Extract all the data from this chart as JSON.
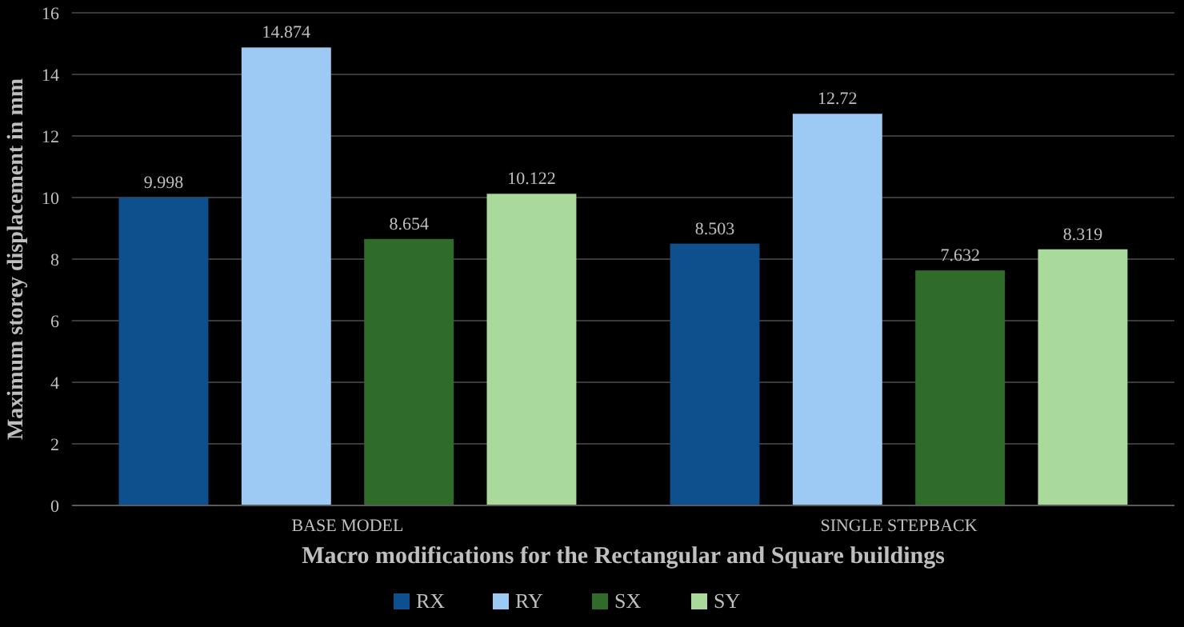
{
  "chart_data": {
    "type": "bar",
    "xlabel": "Macro modifications for the Rectangular and Square buildings",
    "ylabel": "Maximum storey displacement in mm",
    "categories": [
      "BASE MODEL",
      "SINGLE STEPBACK"
    ],
    "series": [
      {
        "name": "RX",
        "color": "#0e4f8e",
        "values": [
          9.998,
          8.503
        ]
      },
      {
        "name": "RY",
        "color": "#9dcaf4",
        "values": [
          14.874,
          12.72
        ]
      },
      {
        "name": "SX",
        "color": "#2f6b29",
        "values": [
          8.654,
          7.632
        ]
      },
      {
        "name": "SY",
        "color": "#a9d99b",
        "values": [
          10.122,
          8.319
        ]
      }
    ],
    "ylim": [
      0,
      16
    ],
    "yticks": [
      0,
      2,
      4,
      6,
      8,
      10,
      12,
      14,
      16
    ],
    "grid": "y",
    "legend": "bottom",
    "data_labels": true
  }
}
